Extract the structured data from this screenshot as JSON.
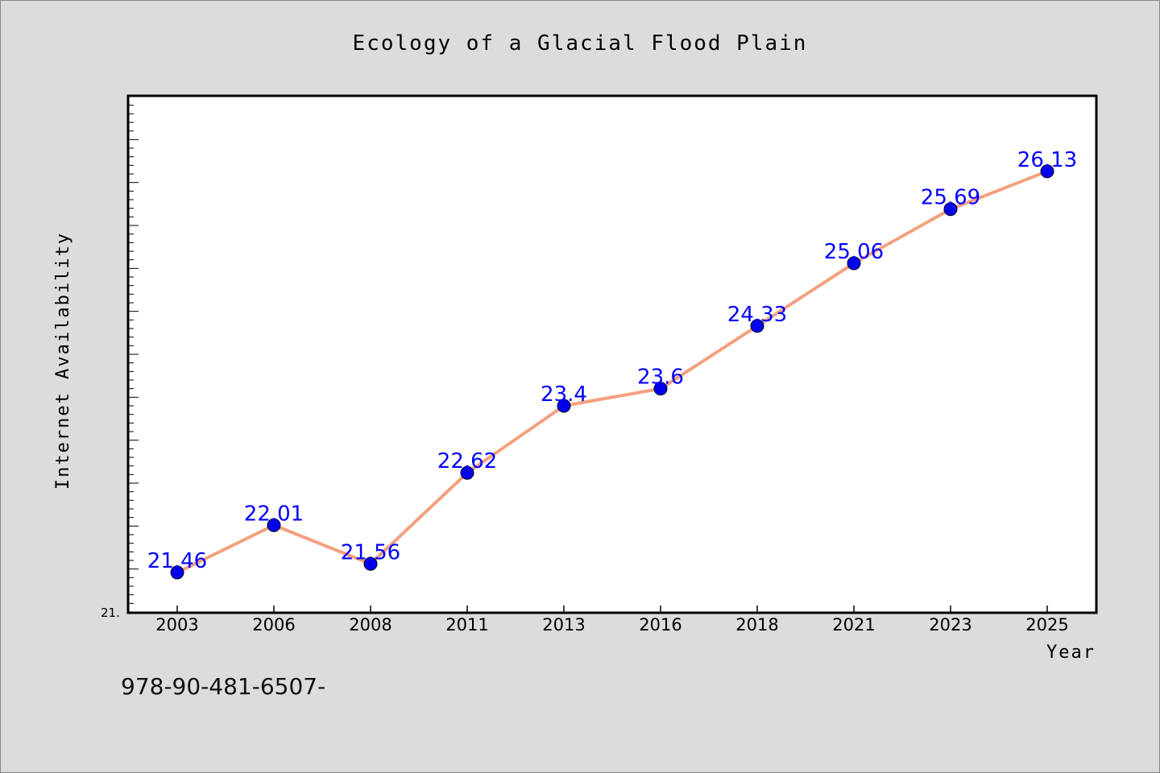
{
  "chart_data": {
    "type": "line",
    "title": "Ecology of a Glacial Flood Plain",
    "xlabel": "Year",
    "ylabel": "Internet Availability",
    "categories": [
      "2003",
      "2006",
      "2008",
      "2011",
      "2013",
      "2016",
      "2018",
      "2021",
      "2023",
      "2025"
    ],
    "series": [
      {
        "values": [
          21.46,
          22.01,
          21.56,
          22.62,
          23.4,
          23.6,
          24.33,
          25.06,
          25.69,
          26.13
        ],
        "data_labels": [
          "21.46",
          "22.01",
          "21.56",
          "22.62",
          "23.4",
          "23.6",
          "24.33",
          "25.06",
          "25.69",
          "26.13"
        ]
      }
    ],
    "ylim": [
      21.0,
      27.0
    ],
    "y_min_label": "21.",
    "grid": false,
    "legend": "none",
    "colors": {
      "line": "#f4a07f",
      "marker": "#0000ee",
      "data_label": "#0000ff",
      "plot_background": "#ffffff",
      "figure_background": "#dcdcdc"
    }
  },
  "footer": {
    "code": "978-90-481-6507-"
  }
}
